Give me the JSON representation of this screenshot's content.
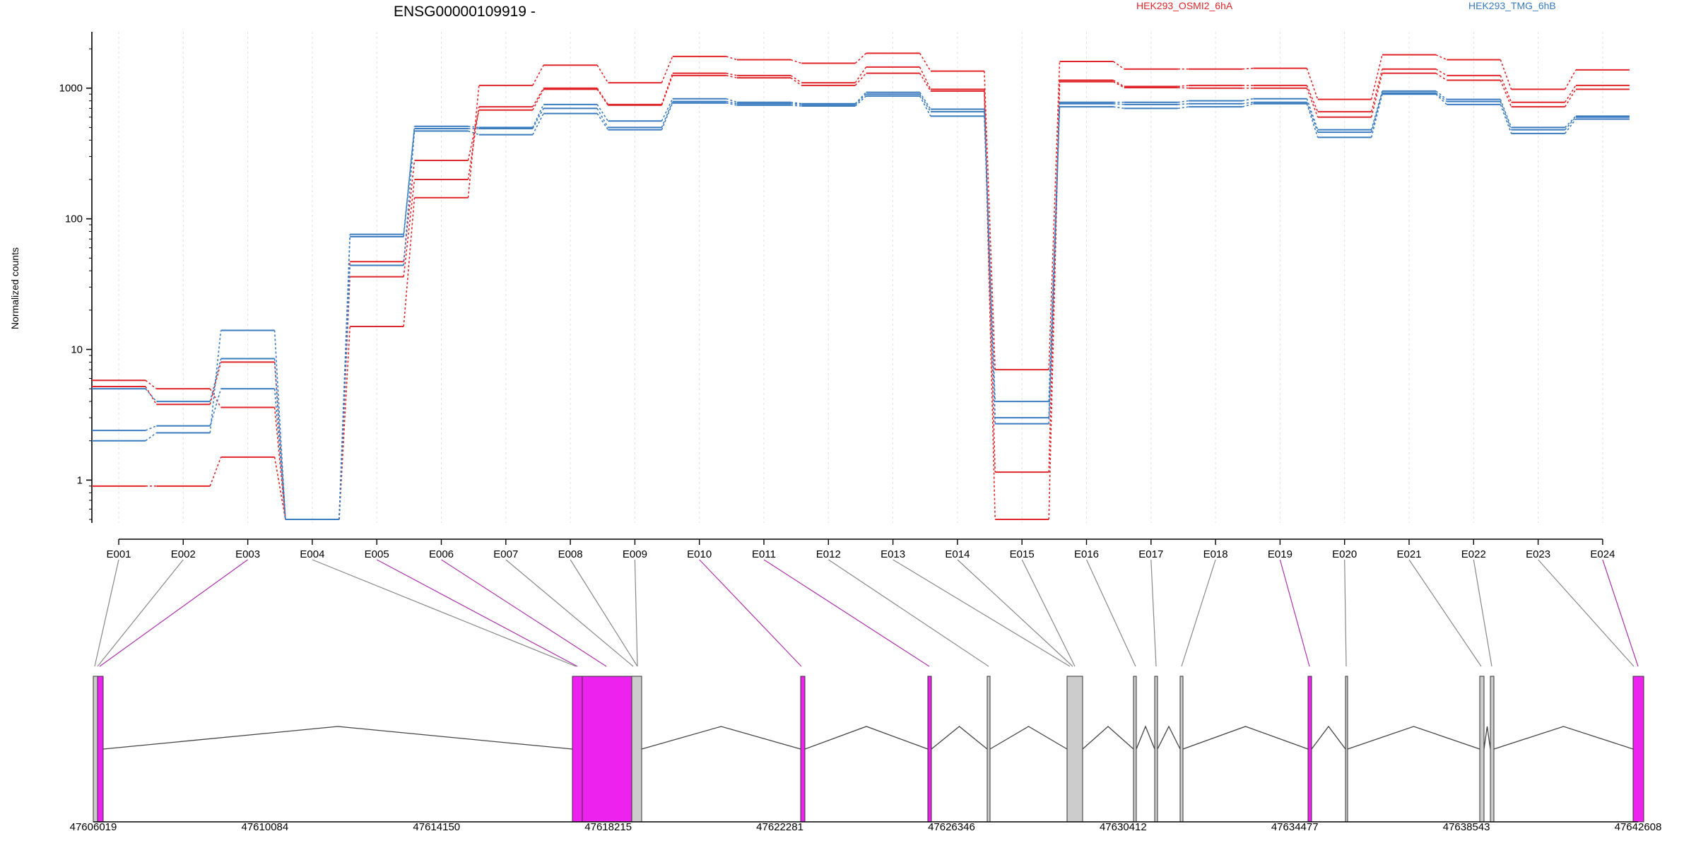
{
  "chart_data": {
    "type": "line",
    "title": "ENSG00000109919 -",
    "ylabel": "Normalized counts",
    "xlabel": "",
    "y_scale": "log",
    "y_ticks": [
      "1",
      "10",
      "100",
      "1000"
    ],
    "ylim": [
      0.47,
      2700
    ],
    "grid": "vertical dotted lines at each exon",
    "legend": [
      {
        "name": "HEK293_OSMI2_6hA",
        "color": "#e0262a",
        "placement": "top-center"
      },
      {
        "name": "HEK293_TMG_6hB",
        "color": "#3a7bbf",
        "placement": "top-right"
      }
    ],
    "categories": [
      "E001",
      "E002",
      "E003",
      "E004",
      "E005",
      "E006",
      "E007",
      "E008",
      "E009",
      "E010",
      "E011",
      "E012",
      "E013",
      "E014",
      "E015",
      "E016",
      "E017",
      "E018",
      "E019",
      "E020",
      "E021",
      "E022",
      "E023",
      "E024"
    ],
    "series": [
      {
        "group": "HEK293_OSMI2_6hA",
        "color": "#e0262a",
        "values": [
          5.8,
          5.0,
          3.6,
          0.5,
          15,
          145,
          1050,
          1500,
          1100,
          1750,
          1650,
          1550,
          1850,
          1350,
          7.0,
          1600,
          1400,
          1400,
          1420,
          820,
          1800,
          1650,
          980,
          1380
        ]
      },
      {
        "group": "HEK293_OSMI2_6hA",
        "color": "#e0262a",
        "values": [
          5.2,
          3.8,
          8.0,
          0.5,
          36,
          200,
          720,
          1000,
          750,
          1300,
          1250,
          1100,
          1450,
          980,
          1.15,
          1150,
          1030,
          1050,
          1050,
          660,
          1400,
          1250,
          780,
          1050
        ]
      },
      {
        "group": "HEK293_OSMI2_6hA",
        "color": "#e0262a",
        "values": [
          0.9,
          0.9,
          1.5,
          0.5,
          47,
          280,
          680,
          980,
          740,
          1250,
          1200,
          1050,
          1300,
          950,
          0.5,
          1120,
          1010,
          1000,
          1000,
          600,
          1300,
          1150,
          720,
          980
        ]
      },
      {
        "group": "HEK293_TMG_6hB",
        "color": "#3a7bbf",
        "values": [
          2.0,
          2.3,
          14,
          0.5,
          73,
          510,
          500,
          750,
          560,
          830,
          780,
          760,
          930,
          690,
          4.0,
          780,
          780,
          800,
          830,
          480,
          950,
          820,
          500,
          610
        ]
      },
      {
        "group": "HEK293_TMG_6hB",
        "color": "#3a7bbf",
        "values": [
          5.0,
          4.0,
          8.5,
          0.5,
          76,
          490,
          490,
          700,
          500,
          790,
          760,
          750,
          900,
          660,
          3.0,
          760,
          750,
          760,
          780,
          460,
          920,
          790,
          480,
          600
        ]
      },
      {
        "group": "HEK293_TMG_6hB",
        "color": "#3a7bbf",
        "values": [
          2.4,
          2.6,
          5.0,
          0.5,
          44,
          470,
          440,
          640,
          480,
          770,
          740,
          730,
          870,
          610,
          2.7,
          720,
          700,
          720,
          760,
          420,
          900,
          750,
          450,
          580
        ]
      }
    ],
    "gene_model": {
      "coord_ticks": [
        "47606019",
        "47610084",
        "47614150",
        "47618215",
        "47622281",
        "47626346",
        "47630412",
        "47634477",
        "47638543",
        "47642608"
      ],
      "highlight_color": "#ee22ee",
      "intron_color": "#444444",
      "connector_colors": {
        "highlighted": "#aa33aa",
        "normal": "#888888"
      }
    }
  }
}
